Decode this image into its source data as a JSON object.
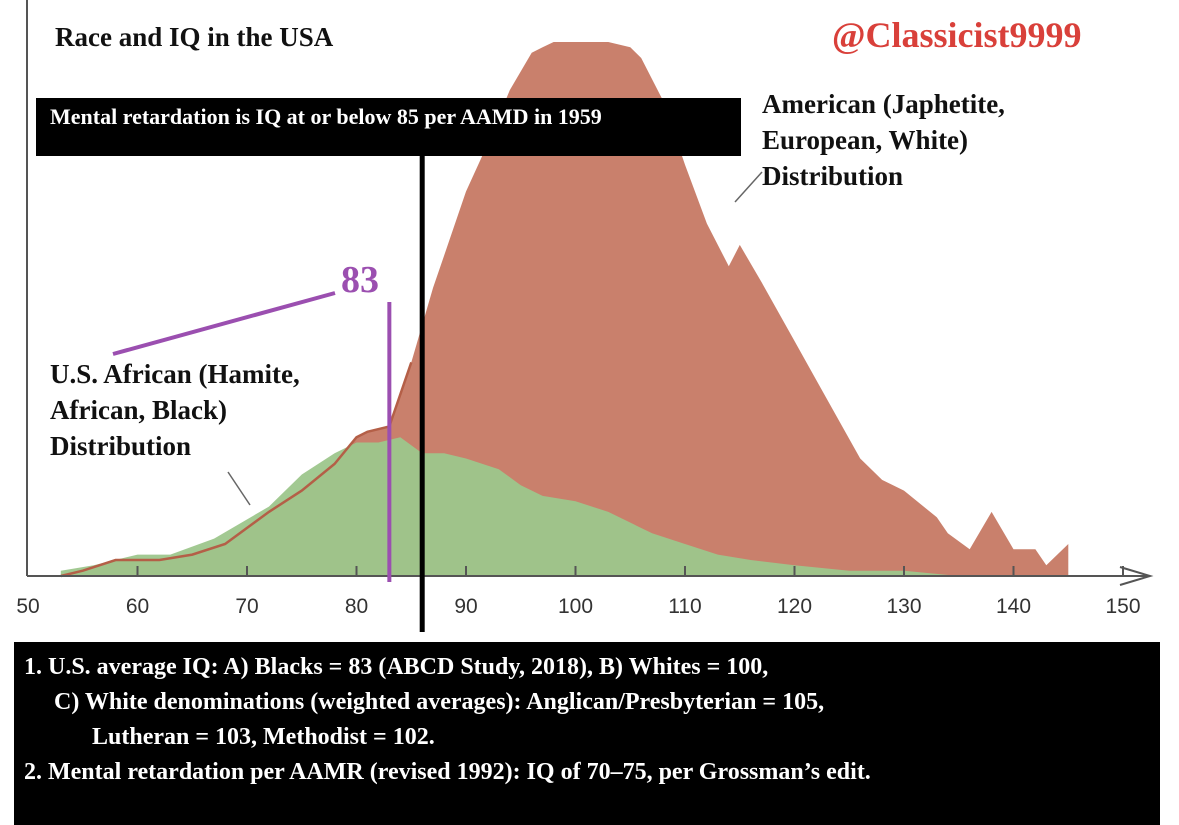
{
  "title": "Race and IQ in the USA",
  "handle": "@Classicist9999",
  "banner": "Mental retardation is IQ at or below 85 per AAMD in 1959",
  "labels": {
    "american": [
      "American (Japhetite,",
      "European, White)",
      "Distribution"
    ],
    "african": [
      "U.S. African (Hamite,",
      "African, Black)",
      "Distribution"
    ]
  },
  "average_label": "83",
  "footnotes": [
    "1. U.S. average IQ: A) Blacks = 83 (ABCD Study, 2018), B) Whites = 100,",
    "C) White denominations (weighted averages): Anglican/Presbyterian = 105,",
    "Lutheran = 103, Methodist = 102.",
    "2. Mental retardation per AAMR (revised 1992): IQ of 70–75, per Grossman’s edit."
  ],
  "colors": {
    "american_fill": "#c9806c",
    "american_stroke": "#b45f47",
    "african_fill": "#9dc68c",
    "average_marker": "#9b4fb0",
    "cutoff_line": "#000000",
    "handle": "#d9403a"
  },
  "chart_data": {
    "type": "area",
    "xlim": [
      50,
      152
    ],
    "ylim": [
      0,
      100
    ],
    "x_ticks": [
      50,
      60,
      70,
      80,
      90,
      100,
      110,
      120,
      130,
      140,
      150
    ],
    "y_units": "relative height (peak of American distribution = 100)",
    "series": [
      {
        "name": "American (Japhetite, European, White) Distribution",
        "x": [
          53,
          55,
          58,
          60,
          62,
          65,
          68,
          72,
          75,
          78,
          80,
          81,
          83,
          85,
          87,
          88,
          90,
          92,
          94,
          96,
          97,
          98,
          100,
          101,
          103,
          105,
          106,
          108,
          110,
          112,
          114,
          115,
          117,
          120,
          123,
          126,
          128,
          130,
          133,
          134,
          136,
          138,
          140,
          142,
          143,
          145
        ],
        "y": [
          0,
          1,
          3,
          3,
          3,
          4,
          6,
          12,
          16,
          21,
          26,
          27,
          28,
          40,
          54,
          60,
          72,
          81,
          91,
          98,
          99,
          100,
          100,
          100,
          100,
          99,
          97,
          89,
          77,
          66,
          58,
          62,
          55,
          44,
          33,
          22,
          18,
          16,
          11,
          8,
          5,
          12,
          5,
          5,
          2,
          6
        ]
      },
      {
        "name": "U.S. African (Hamite, African, Black) Distribution",
        "x": [
          53,
          56,
          60,
          63,
          67,
          72,
          75,
          78,
          80,
          82,
          84,
          86,
          88,
          90,
          93,
          95,
          97,
          100,
          103,
          107,
          110,
          113,
          116,
          120,
          125,
          130,
          135,
          138
        ],
        "y": [
          1,
          2,
          4,
          4,
          7,
          13,
          19,
          23,
          25,
          25,
          26,
          23,
          23,
          22,
          20,
          17,
          15,
          14,
          12,
          8,
          6,
          4,
          3,
          2,
          1,
          1,
          0,
          0
        ]
      }
    ],
    "markers": [
      {
        "x": 86,
        "label": "Mental retardation is IQ at or below 85 per AAMD in 1959"
      },
      {
        "x": 83,
        "label": "83"
      }
    ]
  }
}
